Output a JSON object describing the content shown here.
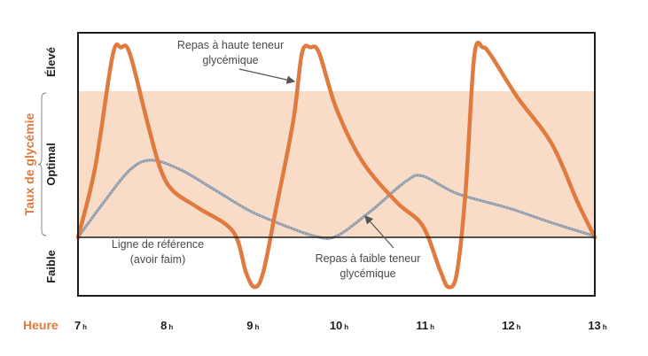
{
  "chart_data": {
    "type": "line",
    "ylabel": "Taux de glycémie",
    "xlabel": "Heure",
    "y_levels": [
      "Faible",
      "Optimal",
      "Élevé"
    ],
    "x_ticks": [
      {
        "value": 7,
        "num": "7",
        "suffix": "h"
      },
      {
        "value": 8,
        "num": "8",
        "suffix": "h"
      },
      {
        "value": 9,
        "num": "9",
        "suffix": "h"
      },
      {
        "value": 10,
        "num": "10",
        "suffix": "h"
      },
      {
        "value": 11,
        "num": "11",
        "suffix": "h"
      },
      {
        "value": 12,
        "num": "12",
        "suffix": "h"
      },
      {
        "value": 13,
        "num": "13",
        "suffix": "h"
      }
    ],
    "xlim": [
      7,
      13
    ],
    "ylim": [
      -1,
      3.5
    ],
    "optimal_band": [
      0,
      2.5
    ],
    "reference_line": 0,
    "series": [
      {
        "name": "Repas à haute teneur glycémique",
        "color": "#e07a3f",
        "points": [
          [
            7,
            0
          ],
          [
            7.2,
            1.2
          ],
          [
            7.4,
            3.1
          ],
          [
            7.5,
            3.25
          ],
          [
            7.6,
            3.15
          ],
          [
            7.8,
            2
          ],
          [
            7.95,
            1.2
          ],
          [
            8.1,
            0.8
          ],
          [
            8.4,
            0.5
          ],
          [
            8.8,
            0.1
          ],
          [
            8.95,
            -0.6
          ],
          [
            9.05,
            -0.85
          ],
          [
            9.15,
            -0.6
          ],
          [
            9.3,
            0.5
          ],
          [
            9.5,
            2
          ],
          [
            9.6,
            3.15
          ],
          [
            9.7,
            3.25
          ],
          [
            9.8,
            3.15
          ],
          [
            10,
            2.2
          ],
          [
            10.3,
            1.3
          ],
          [
            10.7,
            0.6
          ],
          [
            11,
            0.2
          ],
          [
            11.2,
            -0.55
          ],
          [
            11.3,
            -0.85
          ],
          [
            11.4,
            -0.6
          ],
          [
            11.5,
            0.8
          ],
          [
            11.6,
            3.1
          ],
          [
            11.7,
            3.25
          ],
          [
            11.8,
            3.1
          ],
          [
            12.1,
            2.4
          ],
          [
            12.5,
            1.6
          ],
          [
            12.8,
            0.6
          ],
          [
            13,
            0
          ]
        ]
      },
      {
        "name": "Repas à faible teneur glycémique",
        "color": "#8a9aaa",
        "points": [
          [
            7,
            0
          ],
          [
            7.3,
            0.6
          ],
          [
            7.6,
            1.15
          ],
          [
            7.85,
            1.32
          ],
          [
            8.2,
            1.15
          ],
          [
            8.6,
            0.8
          ],
          [
            9,
            0.45
          ],
          [
            9.4,
            0.2
          ],
          [
            9.75,
            0.02
          ],
          [
            10,
            0.02
          ],
          [
            10.4,
            0.45
          ],
          [
            10.8,
            0.95
          ],
          [
            11,
            1.05
          ],
          [
            11.4,
            0.75
          ],
          [
            12,
            0.5
          ],
          [
            12.5,
            0.25
          ],
          [
            13,
            0.02
          ]
        ]
      }
    ],
    "annotations": [
      {
        "lines": [
          "Repas à haute teneur",
          "glycémique"
        ],
        "target": "Repas à haute teneur glycémique"
      },
      {
        "lines": [
          "Ligne de référence",
          "(avoir faim)"
        ],
        "target": "reference_line"
      },
      {
        "lines": [
          "Repas à faible teneur",
          "glycémique"
        ],
        "target": "Repas à faible teneur glycémique"
      }
    ],
    "colors": {
      "band": "#f8dcc8",
      "frame": "#1e1e1e",
      "axis_title": "#e07a3f"
    }
  }
}
